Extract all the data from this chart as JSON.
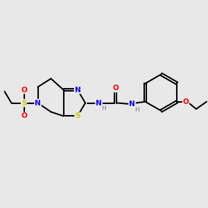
{
  "background_color": "#e8e8e8",
  "atom_colors": {
    "C": "#000000",
    "N": "#0000ff",
    "O": "#ff0000",
    "S": "#cccc00",
    "H": "#808080"
  },
  "bond_color": "#000000",
  "bond_width": 1.5
}
